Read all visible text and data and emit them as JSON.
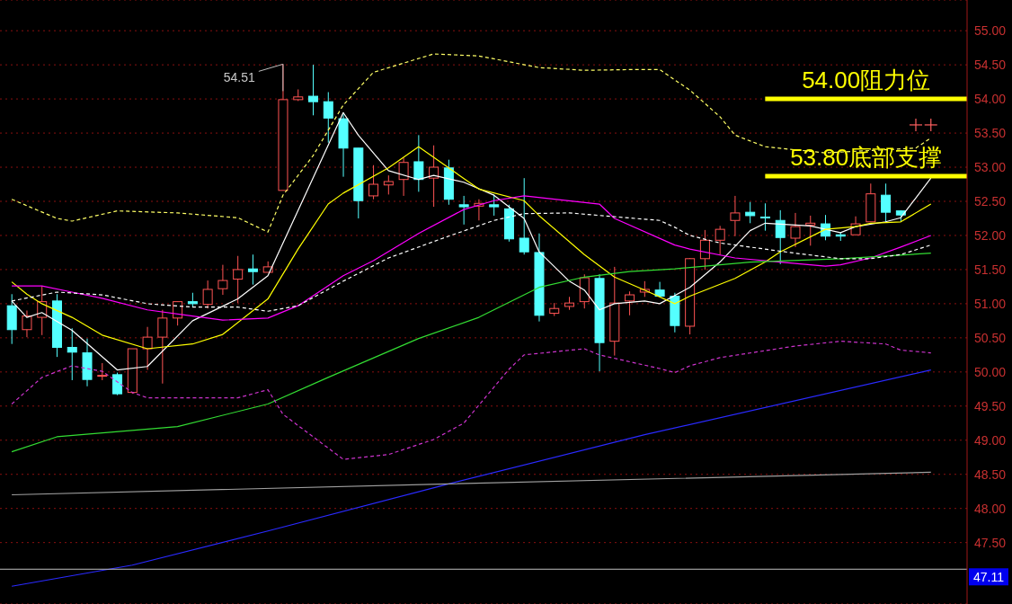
{
  "chart_data": {
    "type": "candlestick",
    "categories": [
      null,
      null,
      null,
      null,
      null,
      null,
      null,
      null,
      null,
      null,
      null,
      null,
      null,
      null,
      null,
      null,
      null,
      null,
      null,
      null,
      null,
      null,
      null,
      null,
      null,
      null,
      null,
      null,
      null,
      null,
      null,
      null,
      null,
      null,
      null,
      null,
      null,
      null,
      null,
      null,
      null,
      null,
      null,
      null,
      null,
      null,
      null,
      null,
      null,
      null,
      null,
      null,
      null,
      null,
      null,
      null,
      null,
      null,
      null,
      null,
      null,
      null
    ],
    "ohlc": [
      [
        50.97,
        51.14,
        50.41,
        50.62
      ],
      [
        50.62,
        50.9,
        50.51,
        50.82
      ],
      [
        50.8,
        51.26,
        50.54,
        51.03
      ],
      [
        51.04,
        51.14,
        50.22,
        50.36
      ],
      [
        50.36,
        50.64,
        49.88,
        50.29
      ],
      [
        50.28,
        50.49,
        49.79,
        49.89
      ],
      [
        49.94,
        50.13,
        49.88,
        49.95
      ],
      [
        49.96,
        49.99,
        49.66,
        49.68
      ],
      [
        49.7,
        50.34,
        49.68,
        50.34
      ],
      [
        50.34,
        50.66,
        50.03,
        50.51
      ],
      [
        50.51,
        50.91,
        49.83,
        50.79
      ],
      [
        50.79,
        51.03,
        50.68,
        51.03
      ],
      [
        51.03,
        51.16,
        50.95,
        51.0
      ],
      [
        50.99,
        51.34,
        50.93,
        51.21
      ],
      [
        51.22,
        51.57,
        51.13,
        51.34
      ],
      [
        51.36,
        51.7,
        51.01,
        51.5
      ],
      [
        51.51,
        51.72,
        51.28,
        51.47
      ],
      [
        51.46,
        51.62,
        51.46,
        51.54
      ],
      [
        52.66,
        54.51,
        52.66,
        53.99
      ],
      [
        53.99,
        54.14,
        53.97,
        54.03
      ],
      [
        54.04,
        54.5,
        53.76,
        53.96
      ],
      [
        53.96,
        54.1,
        53.36,
        53.72
      ],
      [
        53.71,
        53.8,
        52.86,
        53.28
      ],
      [
        53.28,
        53.28,
        52.25,
        52.51
      ],
      [
        52.58,
        53.03,
        52.53,
        52.75
      ],
      [
        52.74,
        52.88,
        52.6,
        52.79
      ],
      [
        52.82,
        53.14,
        52.58,
        53.07
      ],
      [
        53.08,
        53.47,
        52.64,
        52.82
      ],
      [
        52.84,
        53.32,
        52.42,
        53.0
      ],
      [
        52.99,
        53.11,
        52.45,
        52.53
      ],
      [
        52.45,
        52.58,
        52.16,
        52.42
      ],
      [
        52.43,
        52.53,
        52.22,
        52.47
      ],
      [
        52.45,
        52.6,
        52.29,
        52.42
      ],
      [
        52.39,
        52.45,
        51.91,
        51.95
      ],
      [
        51.96,
        52.84,
        51.72,
        51.76
      ],
      [
        51.75,
        52.03,
        50.74,
        50.83
      ],
      [
        50.86,
        51.01,
        50.82,
        50.93
      ],
      [
        50.96,
        51.1,
        50.91,
        51.01
      ],
      [
        51.03,
        51.43,
        50.93,
        51.38
      ],
      [
        51.37,
        51.43,
        50.01,
        50.43
      ],
      [
        50.45,
        51.54,
        50.24,
        51.01
      ],
      [
        51.04,
        51.18,
        50.83,
        51.13
      ],
      [
        51.17,
        51.33,
        51.1,
        51.21
      ],
      [
        51.2,
        51.32,
        51.11,
        51.11
      ],
      [
        51.11,
        51.16,
        50.58,
        50.68
      ],
      [
        50.67,
        51.67,
        50.55,
        51.66
      ],
      [
        51.66,
        52.08,
        51.5,
        51.93
      ],
      [
        51.93,
        52.14,
        51.72,
        52.09
      ],
      [
        52.22,
        52.58,
        51.99,
        52.33
      ],
      [
        52.34,
        52.49,
        52.18,
        52.29
      ],
      [
        52.27,
        52.47,
        52.07,
        52.26
      ],
      [
        52.22,
        52.37,
        51.58,
        51.97
      ],
      [
        51.96,
        52.33,
        51.83,
        52.13
      ],
      [
        52.15,
        52.29,
        51.85,
        52.18
      ],
      [
        52.17,
        52.3,
        51.93,
        51.99
      ],
      [
        52.01,
        52.05,
        51.92,
        51.99
      ],
      [
        52.01,
        52.28,
        52.01,
        52.17
      ],
      [
        52.2,
        52.76,
        52.2,
        52.61
      ],
      [
        52.59,
        52.76,
        52.2,
        52.34
      ],
      [
        52.36,
        52.37,
        52.2,
        52.3
      ],
      null,
      null
    ],
    "colors": [
      "#54ffff",
      "#ff5454",
      "#ff5454",
      "#54ffff",
      "#54ffff",
      "#54ffff",
      "#ff5454",
      "#54ffff",
      "#ff5454",
      "#ff5454",
      "#ff5454",
      "#ff5454",
      "#54ffff",
      "#ff5454",
      "#ff5454",
      "#ff5454",
      "#54ffff",
      "#ff5454",
      "#ff5454",
      "#ff5454",
      "#54ffff",
      "#54ffff",
      "#54ffff",
      "#54ffff",
      "#ff5454",
      "#ff5454",
      "#ff5454",
      "#54ffff",
      "#ff5454",
      "#54ffff",
      "#54ffff",
      "#ff5454",
      "#54ffff",
      "#54ffff",
      "#54ffff",
      "#54ffff",
      "#ff5454",
      "#ff5454",
      "#ff5454",
      "#54ffff",
      "#ff5454",
      "#ff5454",
      "#ff5454",
      "#54ffff",
      "#54ffff",
      "#ff5454",
      "#ff5454",
      "#ff5454",
      "#ff5454",
      "#54ffff",
      "#54ffff",
      "#54ffff",
      "#ff5454",
      "#ff5454",
      "#54ffff",
      "#54ffff",
      "#ff5454",
      "#ff5454",
      "#54ffff",
      "#54ffff",
      null,
      null
    ],
    "series": [
      {
        "type": "line",
        "color": "#ffffff",
        "line_style": "solid",
        "values": [
          51.04,
          50.8,
          50.87,
          null,
          50.61,
          null,
          null,
          50.03,
          null,
          50.08,
          null,
          null,
          50.75,
          null,
          null,
          51.07,
          null,
          51.41,
          null,
          null,
          null,
          null,
          53.8,
          53.47,
          null,
          52.95,
          null,
          52.82,
          52.88,
          null,
          52.78,
          null,
          52.59,
          null,
          52.25,
          51.76,
          null,
          51.33,
          51.2,
          50.91,
          51.0,
          null,
          51.04,
          51.0,
          null,
          51.24,
          null,
          51.61,
          null,
          52.07,
          52.18,
          null,
          null,
          52.14,
          null,
          52.04,
          52.13,
          null,
          52.2,
          52.26,
          null,
          52.84
        ]
      },
      {
        "type": "line",
        "color": "#ffff00",
        "line_style": "solid",
        "values": [
          51.32,
          51.14,
          51.0,
          null,
          50.8,
          null,
          50.54,
          null,
          null,
          50.34,
          null,
          null,
          50.41,
          null,
          50.55,
          null,
          null,
          51.07,
          null,
          51.8,
          null,
          52.46,
          52.62,
          null,
          null,
          52.99,
          null,
          53.3,
          null,
          52.99,
          null,
          52.68,
          null,
          null,
          52.51,
          52.29,
          null,
          null,
          51.72,
          null,
          51.39,
          null,
          51.2,
          null,
          51.0,
          51.11,
          null,
          null,
          51.37,
          null,
          51.61,
          51.76,
          null,
          null,
          52.09,
          null,
          52.13,
          52.18,
          null,
          52.2,
          null,
          52.46
        ]
      },
      {
        "type": "line",
        "color": "#ff00ff",
        "line_style": "solid",
        "values": [
          51.26,
          null,
          51.26,
          null,
          51.17,
          null,
          51.08,
          null,
          null,
          50.91,
          null,
          null,
          50.82,
          null,
          50.76,
          null,
          null,
          50.79,
          null,
          50.97,
          null,
          null,
          51.41,
          null,
          51.63,
          null,
          null,
          52.03,
          null,
          null,
          52.38,
          null,
          52.51,
          null,
          52.58,
          null,
          null,
          null,
          null,
          52.46,
          52.25,
          null,
          null,
          null,
          51.86,
          51.8,
          null,
          null,
          51.67,
          null,
          null,
          51.61,
          null,
          null,
          51.55,
          51.57,
          null,
          51.67,
          null,
          51.83,
          null,
          52.0
        ]
      },
      {
        "type": "line",
        "color": "#33dd33",
        "line_style": "solid",
        "values": [
          48.83,
          null,
          null,
          49.05,
          null,
          null,
          null,
          null,
          null,
          null,
          null,
          49.2,
          null,
          null,
          null,
          null,
          null,
          49.53,
          null,
          null,
          null,
          49.92,
          null,
          null,
          null,
          null,
          null,
          50.49,
          null,
          null,
          null,
          50.8,
          null,
          null,
          null,
          51.24,
          null,
          null,
          51.39,
          null,
          null,
          51.47,
          null,
          null,
          51.51,
          null,
          null,
          null,
          null,
          51.61,
          null,
          null,
          null,
          null,
          null,
          51.66,
          null,
          null,
          null,
          null,
          null,
          51.74
        ]
      },
      {
        "type": "line",
        "color": "#2a2aff",
        "line_style": "solid",
        "values": [
          46.86,
          null,
          null,
          null,
          null,
          null,
          null,
          null,
          47.17,
          null,
          null,
          null,
          null,
          null,
          null,
          null,
          null,
          47.67,
          null,
          null,
          null,
          null,
          null,
          null,
          null,
          null,
          null,
          null,
          null,
          48.36,
          null,
          null,
          null,
          null,
          null,
          null,
          null,
          null,
          null,
          null,
          null,
          null,
          49.08,
          null,
          null,
          null,
          null,
          null,
          null,
          null,
          null,
          null,
          null,
          null,
          null,
          null,
          null,
          null,
          null,
          null,
          null,
          50.03
        ]
      },
      {
        "type": "line",
        "color": "#a0a0a0",
        "line_style": "solid",
        "values": [
          48.2,
          null,
          null,
          null,
          null,
          null,
          null,
          null,
          null,
          null,
          null,
          null,
          null,
          null,
          null,
          null,
          null,
          null,
          null,
          null,
          null,
          null,
          null,
          null,
          null,
          null,
          null,
          null,
          null,
          48.36,
          null,
          null,
          null,
          null,
          null,
          null,
          null,
          null,
          null,
          null,
          null,
          null,
          null,
          null,
          null,
          null,
          null,
          null,
          null,
          null,
          null,
          null,
          null,
          null,
          null,
          null,
          null,
          null,
          null,
          null,
          null,
          48.53
        ]
      },
      {
        "type": "line",
        "color": "#ffff66",
        "line_style": "dashed",
        "values": [
          52.53,
          null,
          null,
          52.25,
          52.21,
          null,
          null,
          52.36,
          null,
          null,
          null,
          52.33,
          null,
          null,
          null,
          52.26,
          null,
          52.05,
          52.59,
          null,
          53.17,
          null,
          53.91,
          null,
          54.39,
          null,
          null,
          null,
          54.66,
          null,
          null,
          54.63,
          null,
          null,
          null,
          54.46,
          null,
          null,
          54.42,
          null,
          null,
          54.43,
          null,
          54.43,
          null,
          54.13,
          null,
          53.74,
          53.47,
          null,
          53.3,
          null,
          null,
          null,
          53.21,
          null,
          null,
          null,
          null,
          null,
          53.28,
          53.43
        ]
      },
      {
        "type": "line",
        "color": "#ffffff",
        "line_style": "dashed",
        "values": [
          51.04,
          null,
          null,
          51.17,
          null,
          null,
          51.13,
          null,
          null,
          51.0,
          null,
          null,
          50.95,
          null,
          null,
          50.95,
          null,
          50.89,
          null,
          50.97,
          null,
          null,
          51.33,
          null,
          null,
          51.67,
          null,
          null,
          null,
          51.99,
          null,
          null,
          52.22,
          null,
          52.32,
          null,
          null,
          52.33,
          null,
          null,
          null,
          null,
          null,
          52.22,
          52.12,
          52.0,
          null,
          51.89,
          null,
          51.83,
          null,
          null,
          51.74,
          null,
          null,
          51.66,
          null,
          51.66,
          null,
          51.72,
          null,
          51.86
        ]
      },
      {
        "type": "line",
        "color": "#cc33cc",
        "line_style": "dashed",
        "values": [
          49.53,
          null,
          49.92,
          null,
          50.09,
          null,
          50.01,
          null,
          49.7,
          49.62,
          null,
          null,
          null,
          null,
          null,
          49.62,
          null,
          49.74,
          49.38,
          null,
          null,
          null,
          48.72,
          null,
          null,
          48.79,
          null,
          null,
          49.01,
          null,
          49.25,
          null,
          null,
          50.04,
          50.25,
          null,
          null,
          null,
          50.34,
          50.25,
          null,
          null,
          null,
          50.05,
          49.99,
          50.09,
          null,
          50.21,
          null,
          null,
          null,
          null,
          50.38,
          null,
          null,
          50.45,
          null,
          null,
          50.41,
          50.32,
          null,
          50.28
        ]
      },
      {
        "type": "scatter",
        "color": "#ff6060",
        "marker": "cross",
        "values": [
          null,
          null,
          null,
          null,
          null,
          null,
          null,
          null,
          null,
          null,
          null,
          null,
          null,
          null,
          null,
          null,
          null,
          null,
          null,
          null,
          null,
          null,
          null,
          null,
          null,
          null,
          null,
          null,
          null,
          null,
          null,
          null,
          null,
          null,
          null,
          null,
          null,
          null,
          null,
          null,
          null,
          null,
          null,
          null,
          null,
          null,
          null,
          null,
          null,
          null,
          null,
          null,
          null,
          null,
          null,
          null,
          null,
          null,
          null,
          null,
          53.62,
          53.62
        ]
      }
    ],
    "ylim": [
      46.6,
      55.45
    ],
    "yticks": [
      {
        "value": 47.5,
        "label": "47.50"
      },
      {
        "value": 48,
        "label": "48.00"
      },
      {
        "value": 48.5,
        "label": "48.50"
      },
      {
        "value": 49,
        "label": "49.00"
      },
      {
        "value": 49.5,
        "label": "49.50"
      },
      {
        "value": 50,
        "label": "50.00"
      },
      {
        "value": 50.5,
        "label": "50.50"
      },
      {
        "value": 51,
        "label": "51.00"
      },
      {
        "value": 51.5,
        "label": "51.50"
      },
      {
        "value": 52,
        "label": "52.00"
      },
      {
        "value": 52.5,
        "label": "52.50"
      },
      {
        "value": 53,
        "label": "53.00"
      },
      {
        "value": 53.5,
        "label": "53.50"
      },
      {
        "value": 54,
        "label": "54.00"
      },
      {
        "value": 54.5,
        "label": "54.50"
      },
      {
        "value": 55,
        "label": "55.00"
      }
    ],
    "grid": "y",
    "tick_labels": "y",
    "legend": false,
    "ref_lines": [
      {
        "axis": "y",
        "value": 54.0,
        "label": "54.00阻力位",
        "color": "#ffff00"
      },
      {
        "axis": "y",
        "value": 52.87,
        "label": "53.80底部支撑",
        "color": "#ffff00"
      },
      {
        "axis": "y",
        "value": 47.11,
        "label": "47.11",
        "color": "#c0c0c0"
      }
    ],
    "annotations": [
      "54.51"
    ]
  }
}
